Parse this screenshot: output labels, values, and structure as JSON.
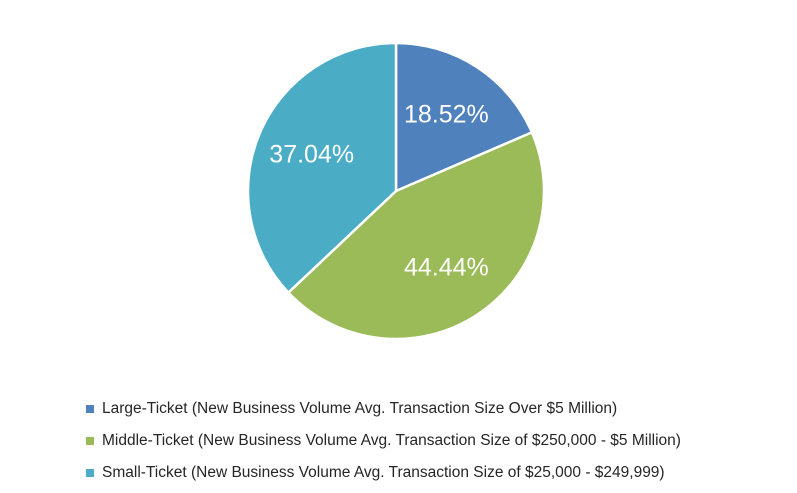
{
  "chart_data": {
    "type": "pie",
    "categories": [
      "Large-Ticket (New Business Volume Avg. Transaction Size Over $5 Million)",
      "Middle-Ticket (New Business Volume Avg. Transaction Size of $250,000 - $5 Million)",
      "Small-Ticket (New Business Volume Avg. Transaction Size of $25,000 - $249,999)"
    ],
    "values": [
      18.52,
      44.44,
      37.04
    ],
    "data_labels": [
      "18.52%",
      "44.44%",
      "37.04%"
    ],
    "colors": [
      "#4F81BD",
      "#9BBB59",
      "#4BACC6"
    ],
    "legend_position": "bottom",
    "start_angle": "12 o'clock",
    "direction": "clockwise"
  }
}
